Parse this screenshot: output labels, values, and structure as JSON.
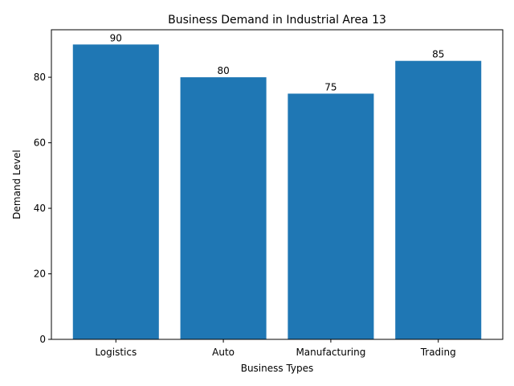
{
  "chart_data": {
    "type": "bar",
    "title": "Business Demand in Industrial Area 13",
    "xlabel": "Business Types",
    "ylabel": "Demand Level",
    "categories": [
      "Logistics",
      "Auto",
      "Manufacturing",
      "Trading"
    ],
    "values": [
      90,
      80,
      75,
      85
    ],
    "data_labels": [
      "90",
      "80",
      "75",
      "85"
    ],
    "ylim": [
      0,
      94.5
    ],
    "yticks": [
      0,
      20,
      40,
      60,
      80
    ],
    "grid": false,
    "legend": null,
    "bar_color": "#1f77b4"
  }
}
